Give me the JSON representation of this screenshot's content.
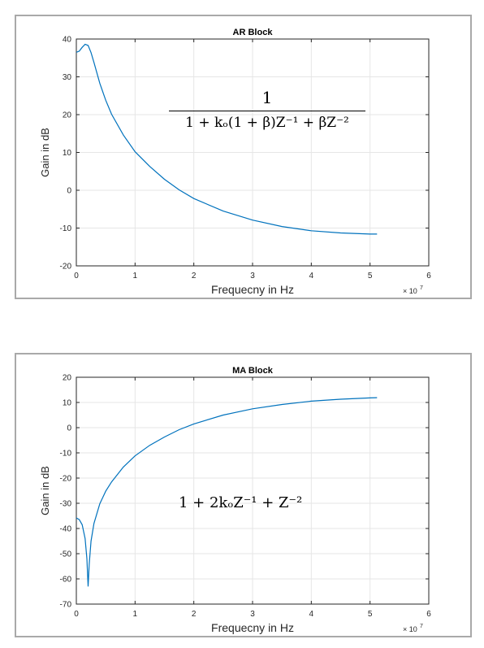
{
  "chart_data": [
    {
      "type": "line",
      "title": "AR Block",
      "xlabel": "Frequecny in Hz",
      "ylabel": "Gain in dB",
      "x_multiplier": "× 10",
      "x_multiplier_exp": "7",
      "xlim": [
        0,
        6
      ],
      "ylim": [
        -20,
        40
      ],
      "xticks": [
        "0",
        "1",
        "2",
        "3",
        "4",
        "5",
        "6"
      ],
      "yticks": [
        "40",
        "30",
        "20",
        "10",
        "0",
        "-10",
        "-20"
      ],
      "grid": true,
      "color": "#0072bd",
      "formula": {
        "numerator": "1",
        "denominator": "1 + kₒ(1 + β)Z⁻¹ + βZ⁻²"
      },
      "series": [
        {
          "x": [
            0,
            0.05,
            0.1,
            0.15,
            0.2,
            0.25,
            0.3,
            0.4,
            0.5,
            0.6,
            0.8,
            1.0,
            1.25,
            1.5,
            1.75,
            2.0,
            2.5,
            3.0,
            3.5,
            4.0,
            4.5,
            5.0,
            5.12
          ],
          "y": [
            36.5,
            36.8,
            37.8,
            38.6,
            38.3,
            36.4,
            33.8,
            28.3,
            23.8,
            20.1,
            14.6,
            10.2,
            6.3,
            2.9,
            0.1,
            -2.2,
            -5.5,
            -7.9,
            -9.6,
            -10.7,
            -11.3,
            -11.6,
            -11.6
          ]
        }
      ]
    },
    {
      "type": "line",
      "title": "MA Block",
      "xlabel": "Frequecny in Hz",
      "ylabel": "Gain in dB",
      "x_multiplier": "× 10",
      "x_multiplier_exp": "7",
      "xlim": [
        0,
        6
      ],
      "ylim": [
        -70,
        20
      ],
      "xticks": [
        "0",
        "1",
        "2",
        "3",
        "4",
        "5",
        "6"
      ],
      "yticks": [
        "20",
        "10",
        "0",
        "-10",
        "-20",
        "-30",
        "-40",
        "-50",
        "-60",
        "-70"
      ],
      "grid": true,
      "color": "#0072bd",
      "formula": {
        "text": "1 + 2kₒZ⁻¹ + Z⁻²"
      },
      "series": [
        {
          "x": [
            0,
            0.05,
            0.1,
            0.15,
            0.18,
            0.2,
            0.22,
            0.25,
            0.3,
            0.4,
            0.5,
            0.6,
            0.8,
            1.0,
            1.25,
            1.5,
            1.75,
            2.0,
            2.5,
            3.0,
            3.5,
            4.0,
            4.5,
            5.0,
            5.12
          ],
          "y": [
            -35.8,
            -36.5,
            -38.5,
            -44.0,
            -52.0,
            -63.0,
            -54.0,
            -45.0,
            -38.0,
            -30.2,
            -25.2,
            -21.5,
            -15.6,
            -11.2,
            -7.0,
            -3.7,
            -0.8,
            1.5,
            5.0,
            7.5,
            9.2,
            10.5,
            11.3,
            11.8,
            11.9
          ]
        }
      ]
    }
  ]
}
